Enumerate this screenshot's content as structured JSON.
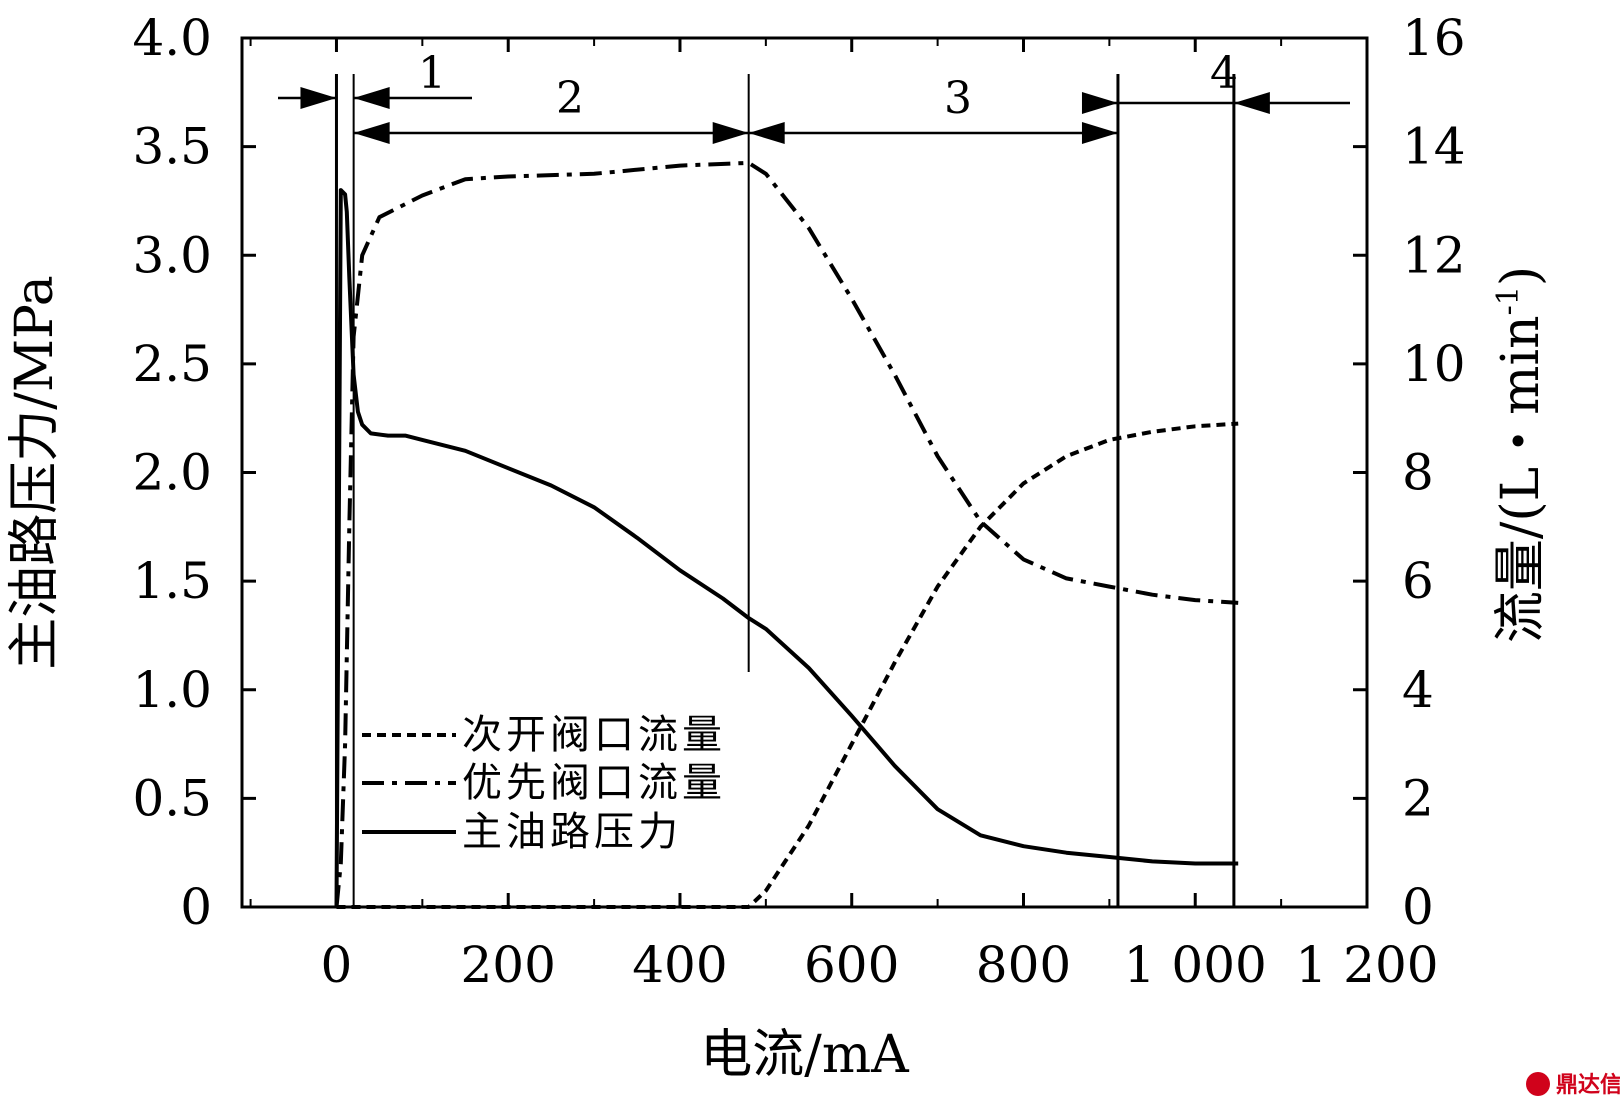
{
  "chart_data": {
    "type": "line",
    "title": "",
    "xlabel": "电流/mA",
    "ylabel_left": "主油路压力/MPa",
    "ylabel_right_main": "流量/(L・min",
    "ylabel_right_sup": "-1",
    "ylabel_right_close": ")",
    "xlim": [
      -110,
      1200
    ],
    "ylim_left": [
      0,
      4.0
    ],
    "ylim_right": [
      0,
      16
    ],
    "x_ticks": [
      0,
      200,
      400,
      600,
      800,
      1000,
      1200
    ],
    "x_tick_labels": [
      "0",
      "200",
      "400",
      "600",
      "800",
      "1 000",
      "1 200"
    ],
    "y_left_ticks": [
      0,
      0.5,
      1.0,
      1.5,
      2.0,
      2.5,
      3.0,
      3.5,
      4.0
    ],
    "y_left_tick_labels": [
      "0",
      "0.5",
      "1.0",
      "1.5",
      "2.0",
      "2.5",
      "3.0",
      "3.5",
      "4.0"
    ],
    "y_right_ticks": [
      0,
      2,
      4,
      6,
      8,
      10,
      12,
      14,
      16
    ],
    "y_right_tick_labels": [
      "0",
      "2",
      "4",
      "6",
      "8",
      "10",
      "12",
      "14",
      "16"
    ],
    "series": [
      {
        "name": "次开阀口流量",
        "axis": "right",
        "style": "dash",
        "x": [
          0,
          100,
          200,
          300,
          400,
          480,
          500,
          550,
          600,
          650,
          700,
          750,
          800,
          850,
          900,
          950,
          1000,
          1050
        ],
        "y": [
          0,
          0,
          0,
          0,
          0,
          0,
          0.3,
          1.5,
          3.0,
          4.5,
          5.9,
          7.0,
          7.8,
          8.3,
          8.6,
          8.75,
          8.85,
          8.9
        ]
      },
      {
        "name": "优先阀口流量",
        "axis": "right",
        "style": "dashdot",
        "x": [
          0,
          5,
          10,
          15,
          20,
          30,
          50,
          100,
          150,
          200,
          300,
          400,
          480,
          500,
          550,
          600,
          650,
          700,
          750,
          800,
          850,
          900,
          950,
          1000,
          1050
        ],
        "y": [
          0,
          0.8,
          3.0,
          7.0,
          10.5,
          12.0,
          12.7,
          13.1,
          13.4,
          13.45,
          13.5,
          13.65,
          13.7,
          13.5,
          12.5,
          11.2,
          9.8,
          8.3,
          7.1,
          6.4,
          6.05,
          5.9,
          5.75,
          5.65,
          5.6
        ]
      },
      {
        "name": "主油路压力",
        "axis": "left",
        "style": "solid",
        "x": [
          0,
          5,
          10,
          12,
          15,
          20,
          25,
          30,
          40,
          60,
          80,
          100,
          150,
          200,
          250,
          300,
          350,
          400,
          450,
          480,
          500,
          550,
          600,
          650,
          700,
          750,
          800,
          850,
          900,
          950,
          1000,
          1050
        ],
        "y": [
          0,
          3.3,
          3.28,
          3.2,
          2.9,
          2.45,
          2.28,
          2.22,
          2.18,
          2.17,
          2.17,
          2.15,
          2.1,
          2.02,
          1.94,
          1.84,
          1.7,
          1.55,
          1.42,
          1.33,
          1.28,
          1.1,
          0.88,
          0.65,
          0.45,
          0.33,
          0.28,
          0.25,
          0.23,
          0.21,
          0.2,
          0.2
        ]
      }
    ],
    "region_boundaries": [
      0,
      20,
      480,
      910,
      1045
    ],
    "region_labels": [
      "1",
      "2",
      "3",
      "4"
    ],
    "legend": "bottom-left"
  },
  "watermark": {
    "text": "鼎达信",
    "color": "#d0021b"
  }
}
